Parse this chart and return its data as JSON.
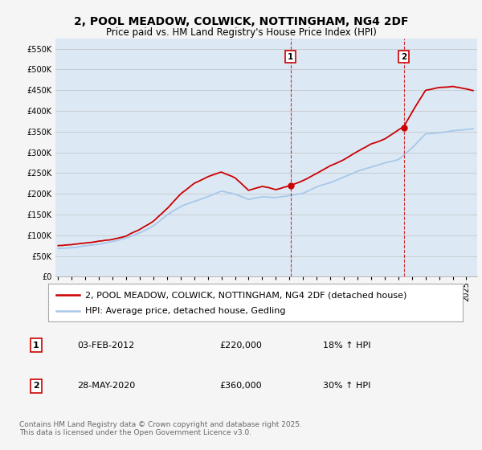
{
  "title": "2, POOL MEADOW, COLWICK, NOTTINGHAM, NG4 2DF",
  "subtitle": "Price paid vs. HM Land Registry's House Price Index (HPI)",
  "legend_property": "2, POOL MEADOW, COLWICK, NOTTINGHAM, NG4 2DF (detached house)",
  "legend_hpi": "HPI: Average price, detached house, Gedling",
  "property_color": "#cc0000",
  "hpi_color": "#a8c8e8",
  "plot_bg": "#dce9f5",
  "fig_bg": "#f5f5f5",
  "ylim": [
    0,
    575000
  ],
  "yticks": [
    0,
    50000,
    100000,
    150000,
    200000,
    250000,
    300000,
    350000,
    400000,
    450000,
    500000,
    550000
  ],
  "xlim_start": 1994.8,
  "xlim_end": 2025.8,
  "transaction1": {
    "year": 2012.08,
    "price": 220000,
    "label": "1",
    "date": "03-FEB-2012",
    "pct": "18% ↑ HPI"
  },
  "transaction2": {
    "year": 2020.41,
    "price": 360000,
    "label": "2",
    "date": "28-MAY-2020",
    "pct": "30% ↑ HPI"
  },
  "footer": "Contains HM Land Registry data © Crown copyright and database right 2025.\nThis data is licensed under the Open Government Licence v3.0.",
  "grid_color": "#c0c0c0",
  "title_fontsize": 10,
  "subtitle_fontsize": 8.5,
  "tick_fontsize": 7,
  "legend_fontsize": 8,
  "table_fontsize": 8,
  "footer_fontsize": 6.5
}
